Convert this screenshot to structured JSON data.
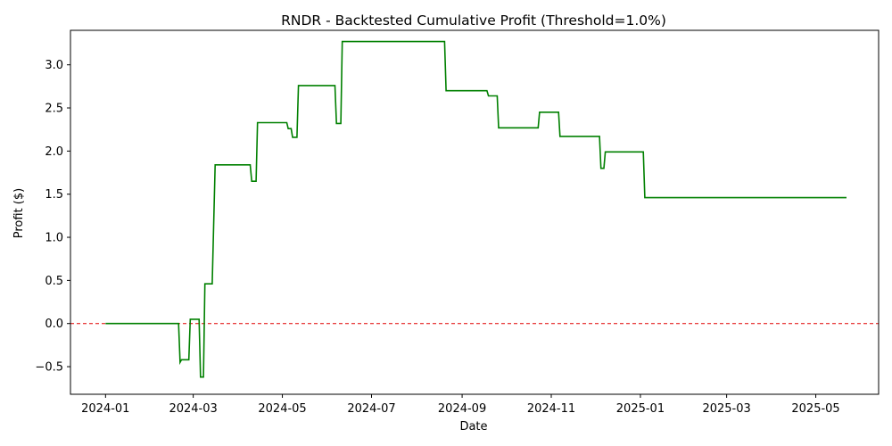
{
  "chart_data": {
    "type": "line",
    "title": "RNDR - Backtested Cumulative Profit (Threshold=1.0%)",
    "xlabel": "Date",
    "ylabel": "Profit ($)",
    "xlim": [
      "2023-12-08",
      "2025-06-13"
    ],
    "ylim": [
      -0.82,
      3.4
    ],
    "x_ticks": [
      {
        "date": "2024-01-01",
        "label": "2024-01"
      },
      {
        "date": "2024-03-01",
        "label": "2024-03"
      },
      {
        "date": "2024-05-01",
        "label": "2024-05"
      },
      {
        "date": "2024-07-01",
        "label": "2024-07"
      },
      {
        "date": "2024-09-01",
        "label": "2024-09"
      },
      {
        "date": "2024-11-01",
        "label": "2024-11"
      },
      {
        "date": "2025-01-01",
        "label": "2025-01"
      },
      {
        "date": "2025-03-01",
        "label": "2025-03"
      },
      {
        "date": "2025-05-01",
        "label": "2025-05"
      }
    ],
    "y_ticks": [
      -0.5,
      0.0,
      0.5,
      1.0,
      1.5,
      2.0,
      2.5,
      3.0
    ],
    "y_tick_labels": [
      "−0.5",
      "0.0",
      "0.5",
      "1.0",
      "1.5",
      "2.0",
      "2.5",
      "3.0"
    ],
    "grid": false,
    "reference_line": {
      "y": 0,
      "color": "#e00000",
      "style": "dashed"
    },
    "series": [
      {
        "color": "#008000",
        "points": [
          [
            "2024-01-01",
            0.0
          ],
          [
            "2024-02-20",
            0.0
          ],
          [
            "2024-02-21",
            -0.45
          ],
          [
            "2024-02-22",
            -0.42
          ],
          [
            "2024-02-27",
            -0.42
          ],
          [
            "2024-02-28",
            0.05
          ],
          [
            "2024-03-05",
            0.05
          ],
          [
            "2024-03-06",
            -0.62
          ],
          [
            "2024-03-08",
            -0.62
          ],
          [
            "2024-03-09",
            0.46
          ],
          [
            "2024-03-14",
            0.46
          ],
          [
            "2024-03-16",
            1.84
          ],
          [
            "2024-04-09",
            1.84
          ],
          [
            "2024-04-10",
            1.65
          ],
          [
            "2024-04-13",
            1.65
          ],
          [
            "2024-04-14",
            2.33
          ],
          [
            "2024-05-04",
            2.33
          ],
          [
            "2024-05-05",
            2.26
          ],
          [
            "2024-05-07",
            2.26
          ],
          [
            "2024-05-08",
            2.16
          ],
          [
            "2024-05-11",
            2.16
          ],
          [
            "2024-05-12",
            2.76
          ],
          [
            "2024-06-06",
            2.76
          ],
          [
            "2024-06-07",
            2.32
          ],
          [
            "2024-06-10",
            2.32
          ],
          [
            "2024-06-11",
            3.27
          ],
          [
            "2024-08-20",
            3.27
          ],
          [
            "2024-08-21",
            2.7
          ],
          [
            "2024-09-18",
            2.7
          ],
          [
            "2024-09-19",
            2.64
          ],
          [
            "2024-09-25",
            2.64
          ],
          [
            "2024-09-26",
            2.27
          ],
          [
            "2024-10-23",
            2.27
          ],
          [
            "2024-10-24",
            2.45
          ],
          [
            "2024-11-06",
            2.45
          ],
          [
            "2024-11-07",
            2.17
          ],
          [
            "2024-12-04",
            2.17
          ],
          [
            "2024-12-05",
            1.8
          ],
          [
            "2024-12-07",
            1.8
          ],
          [
            "2024-12-08",
            1.99
          ],
          [
            "2025-01-03",
            1.99
          ],
          [
            "2025-01-04",
            1.46
          ],
          [
            "2025-05-22",
            1.46
          ]
        ]
      }
    ]
  }
}
